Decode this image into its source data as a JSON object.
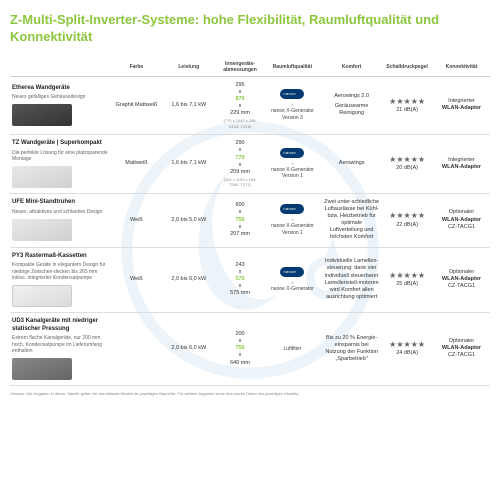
{
  "title": "Z-Multi-Split-Inverter-Systeme:\nhohe Flexibilität, Raumluftqualität und Konnektivität",
  "columns": {
    "c1": "",
    "c2": "Farbe",
    "c3": "Leistung",
    "c4": "Innengeräte-abmessungen",
    "c5": "Raumluftqualität",
    "c6": "Komfort",
    "c7": "Schalldruckpegel",
    "c8": "Konnektivität"
  },
  "rows": [
    {
      "name": "Etherea Wandgeräte",
      "desc": "Neues gefälliges Gehäusedesign",
      "img": "dark",
      "farbe": "Graphit Mattweiß",
      "leistung": "1,6 bis 7,1 kW",
      "dim_w": "295",
      "dim_h": "870",
      "dim_d": "229 mm",
      "dim_note": "(770 x 1040 x 295: VZ18, YZ18)",
      "raum_gen": "nanoe X-Generator Version 3",
      "komfort": "Aerowings 2.0",
      "komfort2": "Geräusearme Reinigung",
      "schall": "21 dB(A)",
      "schall_stars": 5,
      "konn_pre": "Integrierter",
      "konn_main": "WLAN-Adapter",
      "konn_sub": ""
    },
    {
      "name": "TZ Wandgeräte | Superkompakt",
      "desc": "Die perfekte Lösung für eine platzsparende Montage",
      "img": "light",
      "farbe": "Mattweiß",
      "leistung": "1,6 bis 7,1 kW",
      "dim_w": "290",
      "dim_h": "779",
      "dim_d": "209 mm",
      "dim_note": "(302 x 1102 x 244: TZ60, TZ71)",
      "raum_gen": "nanoe X-Generator Version 1",
      "komfort": "Aerowings",
      "komfort2": "",
      "schall": "20 dB(A)",
      "schall_stars": 5,
      "konn_pre": "Integrierter",
      "konn_main": "WLAN-Adapter",
      "konn_sub": ""
    },
    {
      "name": "UFE Mini-Standtruhen",
      "desc": "Neues, attraktives und schlankes Design",
      "img": "light",
      "farbe": "Weiß",
      "leistung": "2,0 bis 5,0 kW",
      "dim_w": "600",
      "dim_h": "750",
      "dim_d": "207 mm",
      "dim_note": "",
      "raum_gen": "nanoe X-Generator Version 1",
      "komfort": "Zwei unter-schiedliche Luftauslässe bei Kühl- bzw. Heizbetrieb für optimale Luftverteilung und höchsten Komfort",
      "komfort2": "",
      "schall": "22 dB(A)",
      "schall_stars": 5,
      "konn_pre": "Optionaler",
      "konn_main": "WLAN-Adapter",
      "konn_sub": "CZ-TACG1"
    },
    {
      "name": "PY3 Rastermaß-Kassetten",
      "desc": "Kompakte Geräte in elegantem Design für niedrige Zwischen-decken bis 265 mm inklus. integrierter Kondensatpumpe",
      "img": "cassette",
      "farbe": "Weiß",
      "leistung": "2,0 bis 6,0 kW",
      "dim_w": "243",
      "dim_h": "575",
      "dim_d": "575 mm",
      "dim_note": "",
      "raum_gen": "nanoe X-Generator",
      "komfort": "Individuelle Lamellen-steuerung: dank vier individuell steuerbarer Lamellenstell-motoren wird Komfort allen ausrichtung optimiert",
      "komfort2": "",
      "schall": "25 dB(A)",
      "schall_stars": 5,
      "konn_pre": "Optionaler",
      "konn_main": "WLAN-Adapter",
      "konn_sub": "CZ-TACG1"
    },
    {
      "name": "UD3 Kanalgeräte mit niedriger statischer Pressung",
      "desc": "Extrem flache Kanalgeräte, nur 200 mm hoch, Kondensatpumpe im Lieferumfang enthalten",
      "img": "duct",
      "farbe": "",
      "leistung": "2,0 bis 6,0 kW",
      "dim_w": "200",
      "dim_h": "750",
      "dim_d": "640 mm",
      "dim_note": "",
      "raum_gen": "Luftfilter",
      "raum_nologo": true,
      "komfort": "Bis zu 20 % Energie-einsparnis bei Nutzung der Funktion „Sparbetrieb\"",
      "komfort2": "",
      "schall": "24 dB(A)",
      "schall_stars": 5,
      "konn_pre": "Optionaler",
      "konn_main": "WLAN-Adapter",
      "konn_sub": "CZ-TACG1"
    }
  ],
  "footnote": "Hinweis: Alle Angaben in dieser Tabelle gelten für das kleinste Modell der jeweiligen Baureihe. Für weitere Angaben siehe technische Daten des jeweiligen Modells.",
  "colors": {
    "accent": "#8dc63f",
    "nanoe": "#003a70",
    "watermark": "#2e7db8"
  }
}
